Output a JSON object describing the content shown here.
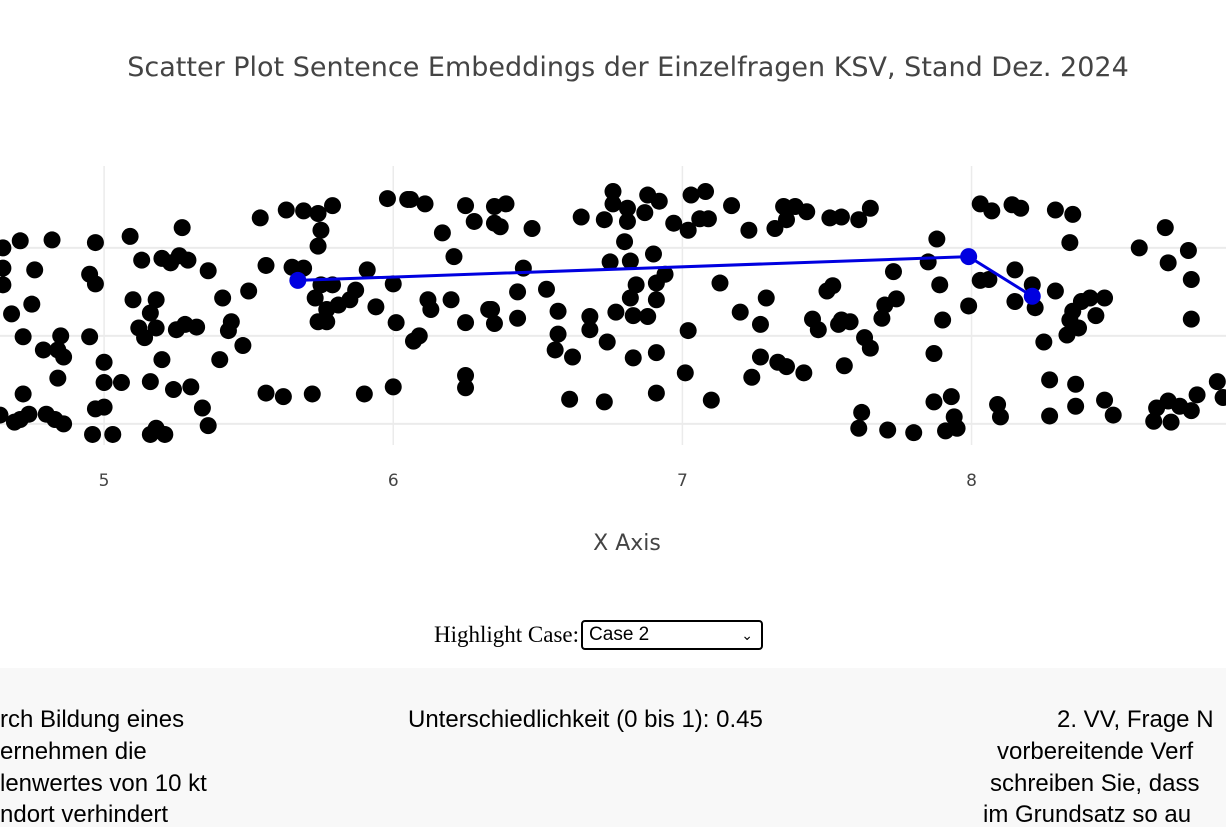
{
  "chart_data": {
    "type": "scatter",
    "title": "Scatter Plot Sentence Embeddings der Einzelfragen KSV, Stand Dez. 2024",
    "xlabel": "X Axis",
    "ylabel": "",
    "xlim": [
      4.64,
      8.88
    ],
    "ylim": [
      0.76,
      3.93
    ],
    "xticks": [
      5,
      6,
      7,
      8
    ],
    "grid": true,
    "point_color": "#000000",
    "highlight_color": "#0000e0",
    "points": [
      [
        4.65,
        3.0
      ],
      [
        4.65,
        2.77
      ],
      [
        4.65,
        2.58
      ],
      [
        4.68,
        2.25
      ],
      [
        4.71,
        3.08
      ],
      [
        4.76,
        2.75
      ],
      [
        4.75,
        2.36
      ],
      [
        4.72,
        1.99
      ],
      [
        4.82,
        3.09
      ],
      [
        4.79,
        1.84
      ],
      [
        4.84,
        1.84
      ],
      [
        4.86,
        1.76
      ],
      [
        4.85,
        2.0
      ],
      [
        4.84,
        1.52
      ],
      [
        4.72,
        1.34
      ],
      [
        4.64,
        1.1
      ],
      [
        4.71,
        1.05
      ],
      [
        4.69,
        1.02
      ],
      [
        4.74,
        1.11
      ],
      [
        4.8,
        1.11
      ],
      [
        4.83,
        1.05
      ],
      [
        4.86,
        1.0
      ],
      [
        4.97,
        3.06
      ],
      [
        4.95,
        2.7
      ],
      [
        4.97,
        2.59
      ],
      [
        4.95,
        1.99
      ],
      [
        5.0,
        1.7
      ],
      [
        5.0,
        1.47
      ],
      [
        5.0,
        1.19
      ],
      [
        4.97,
        1.17
      ],
      [
        5.06,
        1.47
      ],
      [
        4.96,
        0.88
      ],
      [
        5.03,
        0.88
      ],
      [
        5.09,
        3.13
      ],
      [
        5.13,
        2.86
      ],
      [
        5.1,
        2.41
      ],
      [
        5.12,
        2.09
      ],
      [
        5.16,
        2.26
      ],
      [
        5.18,
        2.41
      ],
      [
        5.14,
        1.98
      ],
      [
        5.18,
        2.09
      ],
      [
        5.2,
        1.73
      ],
      [
        5.16,
        1.48
      ],
      [
        5.24,
        1.39
      ],
      [
        5.3,
        1.42
      ],
      [
        5.34,
        1.18
      ],
      [
        5.36,
        0.98
      ],
      [
        5.16,
        0.88
      ],
      [
        5.18,
        0.95
      ],
      [
        5.21,
        0.88
      ],
      [
        5.2,
        2.88
      ],
      [
        5.23,
        2.83
      ],
      [
        5.27,
        3.23
      ],
      [
        5.26,
        2.91
      ],
      [
        5.29,
        2.86
      ],
      [
        5.36,
        2.74
      ],
      [
        5.41,
        2.43
      ],
      [
        5.44,
        2.16
      ],
      [
        5.43,
        2.06
      ],
      [
        5.4,
        1.73
      ],
      [
        5.48,
        1.89
      ],
      [
        5.32,
        2.1
      ],
      [
        5.28,
        2.13
      ],
      [
        5.25,
        2.07
      ],
      [
        5.54,
        3.34
      ],
      [
        5.56,
        2.8
      ],
      [
        5.5,
        2.51
      ],
      [
        5.56,
        1.35
      ],
      [
        5.62,
        1.31
      ],
      [
        5.63,
        3.43
      ],
      [
        5.69,
        3.42
      ],
      [
        5.65,
        2.78
      ],
      [
        5.69,
        2.77
      ],
      [
        5.72,
        1.34
      ],
      [
        5.74,
        3.39
      ],
      [
        5.79,
        3.48
      ],
      [
        5.75,
        3.2
      ],
      [
        5.74,
        3.02
      ],
      [
        5.73,
        2.43
      ],
      [
        5.75,
        2.58
      ],
      [
        5.79,
        2.58
      ],
      [
        5.81,
        2.35
      ],
      [
        5.77,
        2.3
      ],
      [
        5.74,
        2.16
      ],
      [
        5.77,
        2.16
      ],
      [
        5.85,
        2.41
      ],
      [
        5.87,
        2.52
      ],
      [
        5.91,
        2.75
      ],
      [
        5.94,
        2.33
      ],
      [
        5.9,
        1.34
      ],
      [
        6.0,
        1.42
      ],
      [
        5.98,
        3.56
      ],
      [
        6.05,
        3.55
      ],
      [
        6.06,
        3.55
      ],
      [
        6.11,
        3.5
      ],
      [
        6.17,
        3.17
      ],
      [
        6.21,
        2.9
      ],
      [
        6.12,
        2.41
      ],
      [
        6.13,
        2.3
      ],
      [
        6.01,
        2.15
      ],
      [
        6.07,
        1.94
      ],
      [
        6.09,
        2.0
      ],
      [
        6.0,
        2.59
      ],
      [
        6.2,
        2.41
      ],
      [
        6.25,
        3.48
      ],
      [
        6.28,
        3.3
      ],
      [
        6.35,
        3.47
      ],
      [
        6.39,
        3.5
      ],
      [
        6.35,
        3.28
      ],
      [
        6.37,
        3.24
      ],
      [
        6.48,
        3.22
      ],
      [
        6.45,
        2.77
      ],
      [
        6.33,
        2.3
      ],
      [
        6.34,
        2.3
      ],
      [
        6.25,
        2.15
      ],
      [
        6.35,
        2.14
      ],
      [
        6.43,
        2.2
      ],
      [
        6.43,
        2.5
      ],
      [
        6.53,
        2.53
      ],
      [
        6.25,
        1.55
      ],
      [
        6.25,
        1.41
      ],
      [
        6.57,
        2.28
      ],
      [
        6.57,
        2.02
      ],
      [
        6.56,
        1.84
      ],
      [
        6.62,
        1.76
      ],
      [
        6.61,
        1.28
      ],
      [
        6.73,
        1.25
      ],
      [
        6.68,
        2.22
      ],
      [
        6.68,
        2.07
      ],
      [
        6.74,
        1.93
      ],
      [
        6.77,
        2.27
      ],
      [
        6.65,
        3.35
      ],
      [
        6.73,
        3.32
      ],
      [
        6.76,
        3.64
      ],
      [
        6.76,
        3.5
      ],
      [
        6.81,
        3.45
      ],
      [
        6.87,
        3.4
      ],
      [
        6.88,
        3.6
      ],
      [
        6.92,
        3.53
      ],
      [
        6.81,
        3.3
      ],
      [
        6.8,
        3.07
      ],
      [
        6.75,
        2.84
      ],
      [
        6.82,
        2.85
      ],
      [
        6.9,
        2.93
      ],
      [
        6.84,
        2.58
      ],
      [
        6.82,
        2.43
      ],
      [
        6.83,
        2.23
      ],
      [
        6.88,
        2.22
      ],
      [
        6.91,
        2.41
      ],
      [
        6.94,
        2.7
      ],
      [
        6.91,
        2.6
      ],
      [
        6.97,
        3.28
      ],
      [
        7.02,
        3.2
      ],
      [
        7.03,
        3.6
      ],
      [
        7.08,
        3.64
      ],
      [
        7.06,
        3.33
      ],
      [
        7.09,
        3.33
      ],
      [
        7.02,
        2.06
      ],
      [
        7.01,
        1.58
      ],
      [
        7.1,
        1.27
      ],
      [
        6.83,
        1.75
      ],
      [
        6.91,
        1.81
      ],
      [
        6.91,
        1.35
      ],
      [
        7.13,
        2.6
      ],
      [
        7.17,
        3.48
      ],
      [
        7.2,
        2.27
      ],
      [
        7.23,
        3.2
      ],
      [
        7.27,
        2.13
      ],
      [
        7.29,
        2.43
      ],
      [
        7.27,
        1.76
      ],
      [
        7.24,
        1.53
      ],
      [
        7.32,
        3.22
      ],
      [
        7.35,
        3.47
      ],
      [
        7.36,
        3.32
      ],
      [
        7.39,
        3.47
      ],
      [
        7.43,
        3.41
      ],
      [
        7.33,
        1.7
      ],
      [
        7.36,
        1.65
      ],
      [
        7.42,
        1.58
      ],
      [
        7.45,
        2.19
      ],
      [
        7.47,
        2.07
      ],
      [
        7.5,
        2.51
      ],
      [
        7.52,
        2.57
      ],
      [
        7.54,
        2.13
      ],
      [
        7.55,
        2.18
      ],
      [
        7.58,
        2.16
      ],
      [
        7.51,
        3.34
      ],
      [
        7.55,
        3.35
      ],
      [
        7.61,
        3.32
      ],
      [
        7.65,
        3.45
      ],
      [
        7.56,
        1.66
      ],
      [
        7.63,
        1.98
      ],
      [
        7.65,
        1.86
      ],
      [
        7.62,
        1.13
      ],
      [
        7.61,
        0.95
      ],
      [
        7.71,
        0.93
      ],
      [
        7.8,
        0.9
      ],
      [
        7.69,
        2.2
      ],
      [
        7.7,
        2.35
      ],
      [
        7.74,
        2.42
      ],
      [
        7.73,
        2.73
      ],
      [
        7.85,
        2.84
      ],
      [
        7.88,
        3.1
      ],
      [
        7.89,
        2.58
      ],
      [
        7.9,
        2.18
      ],
      [
        7.87,
        1.8
      ],
      [
        7.87,
        1.25
      ],
      [
        7.93,
        1.31
      ],
      [
        7.94,
        1.08
      ],
      [
        7.91,
        0.92
      ],
      [
        7.95,
        0.95
      ],
      [
        8.03,
        3.5
      ],
      [
        8.07,
        3.42
      ],
      [
        8.14,
        3.49
      ],
      [
        8.17,
        3.45
      ],
      [
        8.29,
        3.43
      ],
      [
        8.35,
        3.38
      ],
      [
        8.34,
        3.06
      ],
      [
        8.15,
        2.75
      ],
      [
        8.03,
        2.63
      ],
      [
        8.06,
        2.64
      ],
      [
        7.99,
        2.34
      ],
      [
        8.15,
        2.39
      ],
      [
        8.21,
        2.58
      ],
      [
        8.22,
        2.32
      ],
      [
        8.29,
        2.51
      ],
      [
        8.34,
        2.18
      ],
      [
        8.35,
        2.28
      ],
      [
        8.38,
        2.39
      ],
      [
        8.41,
        2.43
      ],
      [
        8.46,
        2.43
      ],
      [
        8.43,
        2.23
      ],
      [
        8.33,
        2.01
      ],
      [
        8.37,
        2.09
      ],
      [
        8.25,
        1.93
      ],
      [
        8.27,
        1.5
      ],
      [
        8.36,
        1.45
      ],
      [
        8.36,
        1.2
      ],
      [
        8.27,
        1.09
      ],
      [
        8.1,
        1.08
      ],
      [
        8.09,
        1.22
      ],
      [
        8.46,
        1.27
      ],
      [
        8.49,
        1.1
      ],
      [
        8.58,
        3.0
      ],
      [
        8.67,
        3.23
      ],
      [
        8.68,
        2.83
      ],
      [
        8.75,
        2.97
      ],
      [
        8.76,
        2.64
      ],
      [
        8.76,
        2.19
      ],
      [
        8.64,
        1.18
      ],
      [
        8.68,
        1.26
      ],
      [
        8.63,
        1.03
      ],
      [
        8.69,
        1.02
      ],
      [
        8.72,
        1.2
      ],
      [
        8.76,
        1.15
      ],
      [
        8.78,
        1.33
      ],
      [
        8.85,
        1.48
      ],
      [
        8.87,
        1.3
      ]
    ],
    "highlight_points": [
      [
        5.67,
        2.63
      ],
      [
        7.99,
        2.9
      ],
      [
        8.21,
        2.45
      ]
    ]
  },
  "controls": {
    "highlight_label": "Highlight Case:",
    "highlight_value": "Case 2"
  },
  "panel": {
    "left_lines": [
      "rch Bildung eines",
      "ernehmen die",
      "lenwertes von 10 kt",
      "ndort verhindert"
    ],
    "middle_text": "Unterschiedlichkeit (0 bis 1): 0.45",
    "right_lines": [
      "2. VV, Frage N",
      "vorbereitende Verf",
      "schreiben Sie, dass",
      "im Grundsatz so au"
    ]
  }
}
